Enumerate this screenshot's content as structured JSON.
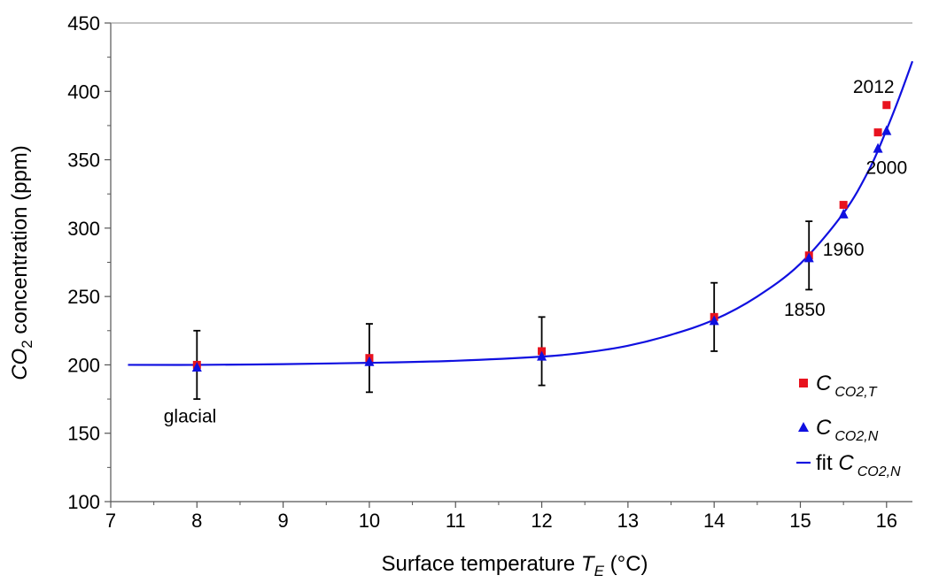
{
  "chart_data": {
    "type": "scatter",
    "xlabel": {
      "main": "Surface temperature ",
      "var": "T",
      "sub": "E",
      "unit": " (°C)"
    },
    "ylabel": {
      "pre": "CO",
      "sub": "2",
      "post": " concentration  (ppm)"
    },
    "xlim": [
      7,
      16.3
    ],
    "ylim": [
      100,
      450
    ],
    "x_ticks": [
      7,
      8,
      9,
      10,
      11,
      12,
      13,
      14,
      15,
      16
    ],
    "y_ticks": [
      100,
      150,
      200,
      250,
      300,
      350,
      400,
      450
    ],
    "grid": false,
    "legend_position": "bottom-right",
    "series": [
      {
        "name": "C_CO2,T",
        "label_main": "C",
        "label_sub": "CO2,T",
        "marker": "square",
        "color": "#e8121e",
        "points": [
          {
            "x": 8,
            "y": 200
          },
          {
            "x": 10,
            "y": 205
          },
          {
            "x": 12,
            "y": 210
          },
          {
            "x": 14,
            "y": 235
          },
          {
            "x": 15.1,
            "y": 280
          },
          {
            "x": 15.5,
            "y": 317
          },
          {
            "x": 15.9,
            "y": 370
          },
          {
            "x": 16.0,
            "y": 390
          }
        ]
      },
      {
        "name": "C_CO2,N",
        "label_main": "C",
        "label_sub": "CO2,N",
        "marker": "triangle",
        "color": "#1010e0",
        "points": [
          {
            "x": 8,
            "y": 199
          },
          {
            "x": 10,
            "y": 203
          },
          {
            "x": 12,
            "y": 207
          },
          {
            "x": 14,
            "y": 233
          },
          {
            "x": 15.1,
            "y": 279
          },
          {
            "x": 15.5,
            "y": 311
          },
          {
            "x": 15.9,
            "y": 359
          },
          {
            "x": 16.0,
            "y": 372
          }
        ]
      },
      {
        "name": "fit C_CO2,N",
        "label_prefix": "fit ",
        "label_main": "C",
        "label_sub": "CO2,N",
        "type": "line",
        "color": "#1010e0",
        "points": [
          {
            "x": 7.2,
            "y": 200
          },
          {
            "x": 8,
            "y": 200
          },
          {
            "x": 9,
            "y": 200.5
          },
          {
            "x": 10,
            "y": 201.5
          },
          {
            "x": 11,
            "y": 203
          },
          {
            "x": 12,
            "y": 206
          },
          {
            "x": 12.5,
            "y": 209
          },
          {
            "x": 13,
            "y": 214
          },
          {
            "x": 13.5,
            "y": 222
          },
          {
            "x": 14,
            "y": 233
          },
          {
            "x": 14.5,
            "y": 250
          },
          {
            "x": 15,
            "y": 274
          },
          {
            "x": 15.5,
            "y": 311
          },
          {
            "x": 15.8,
            "y": 343
          },
          {
            "x": 16,
            "y": 372
          },
          {
            "x": 16.15,
            "y": 396
          },
          {
            "x": 16.3,
            "y": 422
          }
        ]
      }
    ],
    "error_bars": [
      {
        "x": 8,
        "low": 175,
        "high": 225
      },
      {
        "x": 10,
        "low": 180,
        "high": 230
      },
      {
        "x": 12,
        "low": 185,
        "high": 235
      },
      {
        "x": 14,
        "low": 210,
        "high": 260
      },
      {
        "x": 15.1,
        "low": 255,
        "high": 305
      }
    ],
    "annotations": [
      {
        "text": "glacial",
        "x": 7.92,
        "y": 163
      },
      {
        "text": "1850",
        "x": 15.05,
        "y": 241
      },
      {
        "text": "1960",
        "x": 15.5,
        "y": 285
      },
      {
        "text": "2000",
        "x": 16.0,
        "y": 345
      },
      {
        "text": "2012",
        "x": 15.85,
        "y": 404
      }
    ]
  }
}
